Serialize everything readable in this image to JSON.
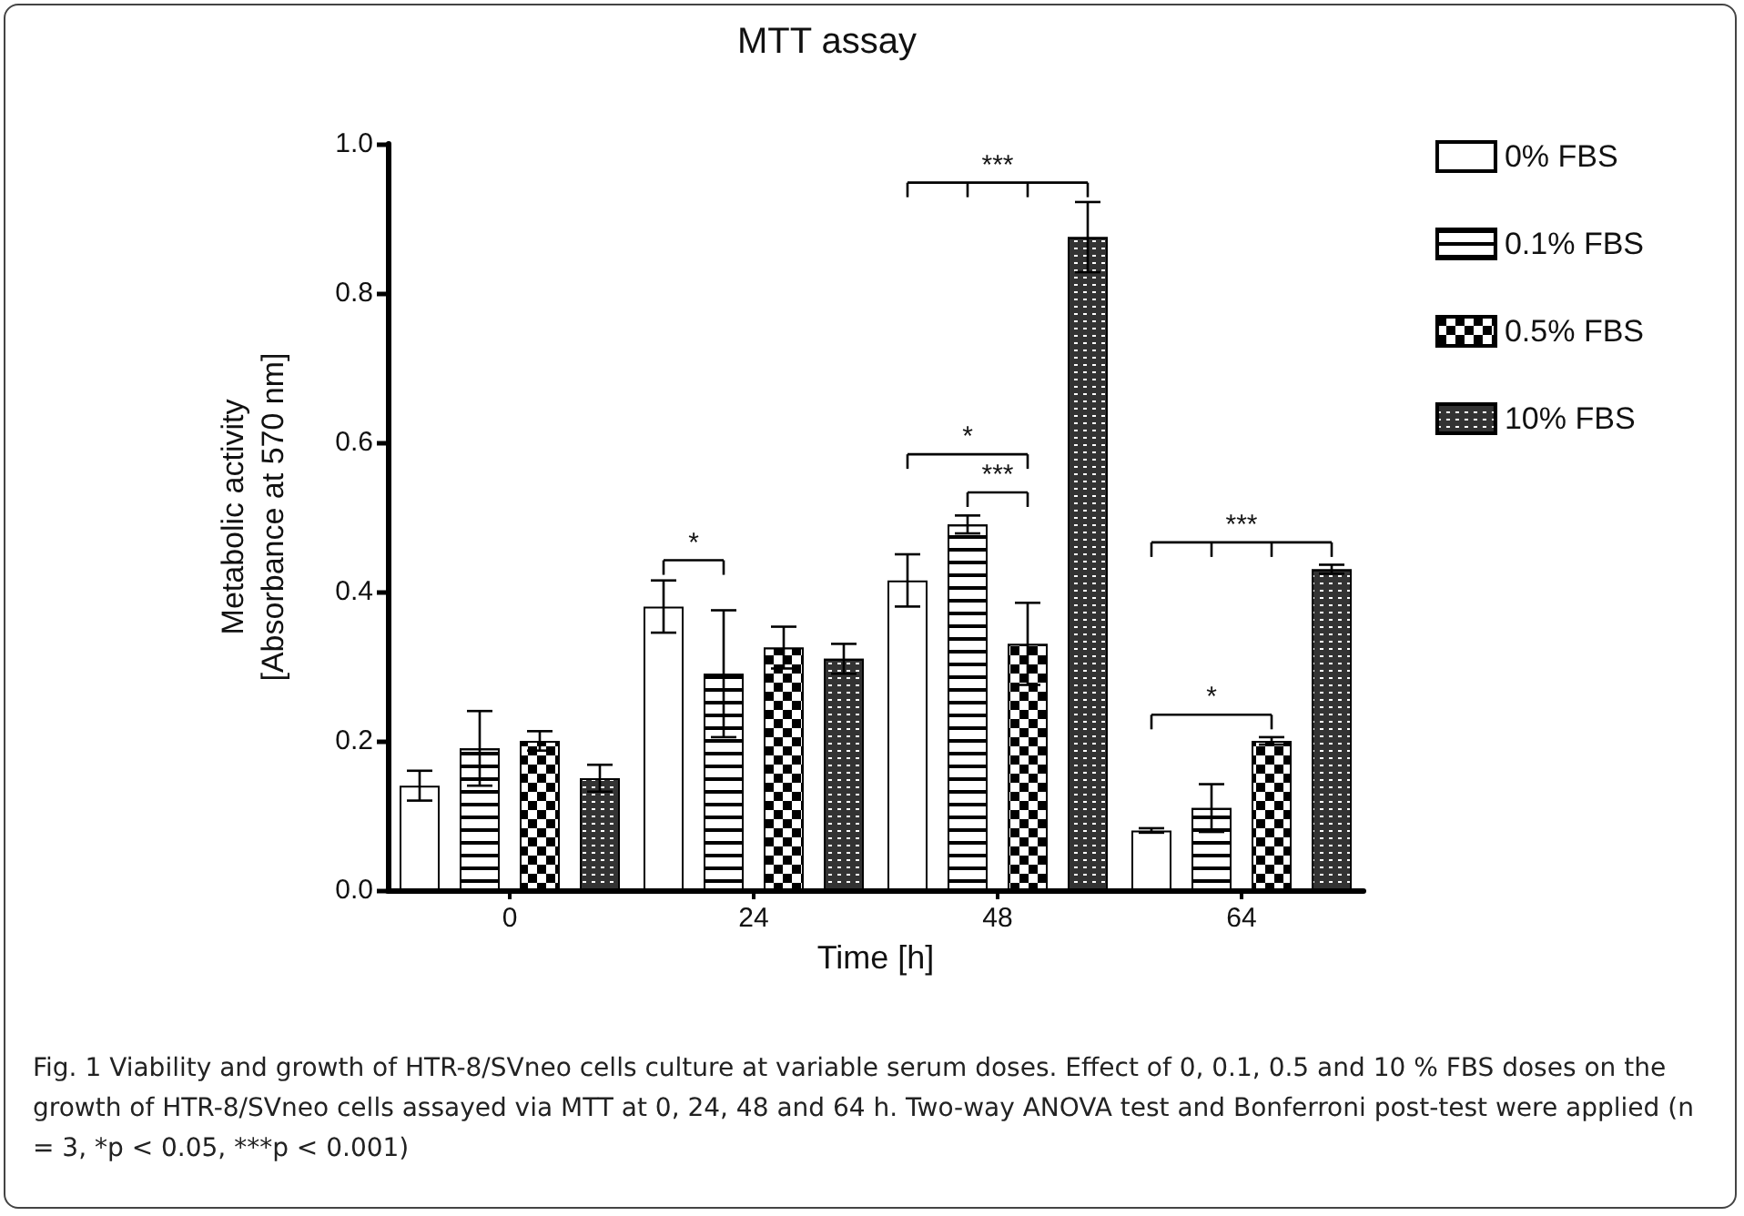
{
  "chart_data": {
    "type": "bar",
    "title": "MTT assay",
    "xlabel": "Time [h]",
    "ylabel": "Metabolic activity\n[Absorbance at 570 nm]",
    "categories": [
      "0",
      "24",
      "48",
      "64"
    ],
    "series": [
      {
        "name": "0% FBS",
        "color": "#ffffff",
        "values": [
          0.14,
          0.38,
          0.415,
          0.08
        ],
        "errors": [
          0.02,
          0.035,
          0.035,
          0.003
        ]
      },
      {
        "name": "0.1% FBS",
        "color": "#ffffff",
        "values": [
          0.19,
          0.29,
          0.49,
          0.11
        ],
        "errors": [
          0.05,
          0.085,
          0.012,
          0.032
        ]
      },
      {
        "name": "0.5% FBS",
        "color": "#000000",
        "values": [
          0.2,
          0.325,
          0.33,
          0.2
        ],
        "errors": [
          0.013,
          0.028,
          0.055,
          0.005
        ]
      },
      {
        "name": "10% FBS",
        "color": "#333333",
        "values": [
          0.15,
          0.31,
          0.875,
          0.43
        ],
        "errors": [
          0.018,
          0.02,
          0.047,
          0.006
        ]
      }
    ],
    "ylim": [
      0,
      1
    ],
    "yticks": [
      {
        "value": 0,
        "label": "0.0"
      },
      {
        "value": 0.2,
        "label": "0.2"
      },
      {
        "value": 0.4,
        "label": "0.4"
      },
      {
        "value": 0.6,
        "label": "0.6"
      },
      {
        "value": 0.8,
        "label": "0.8"
      },
      {
        "value": 1,
        "label": "1.0"
      }
    ],
    "grid": false,
    "legend": "top right",
    "annotations": [
      "*",
      "***",
      "*",
      "***",
      "***",
      "*",
      "Fig. 1 Viability and growth of HTR-8/SVneo cells culture at variable serum doses. Effect of 0, 0.1, 0.5 and 10 % FBS doses on the growth of HTR-8/SVneo cells assayed via MTT at 0, 24, 48 and 64 h. Two-way ANOVA test and Bonferroni post-test were applied (n = 3, *p < 0.05, ***p < 0.001)"
    ]
  }
}
